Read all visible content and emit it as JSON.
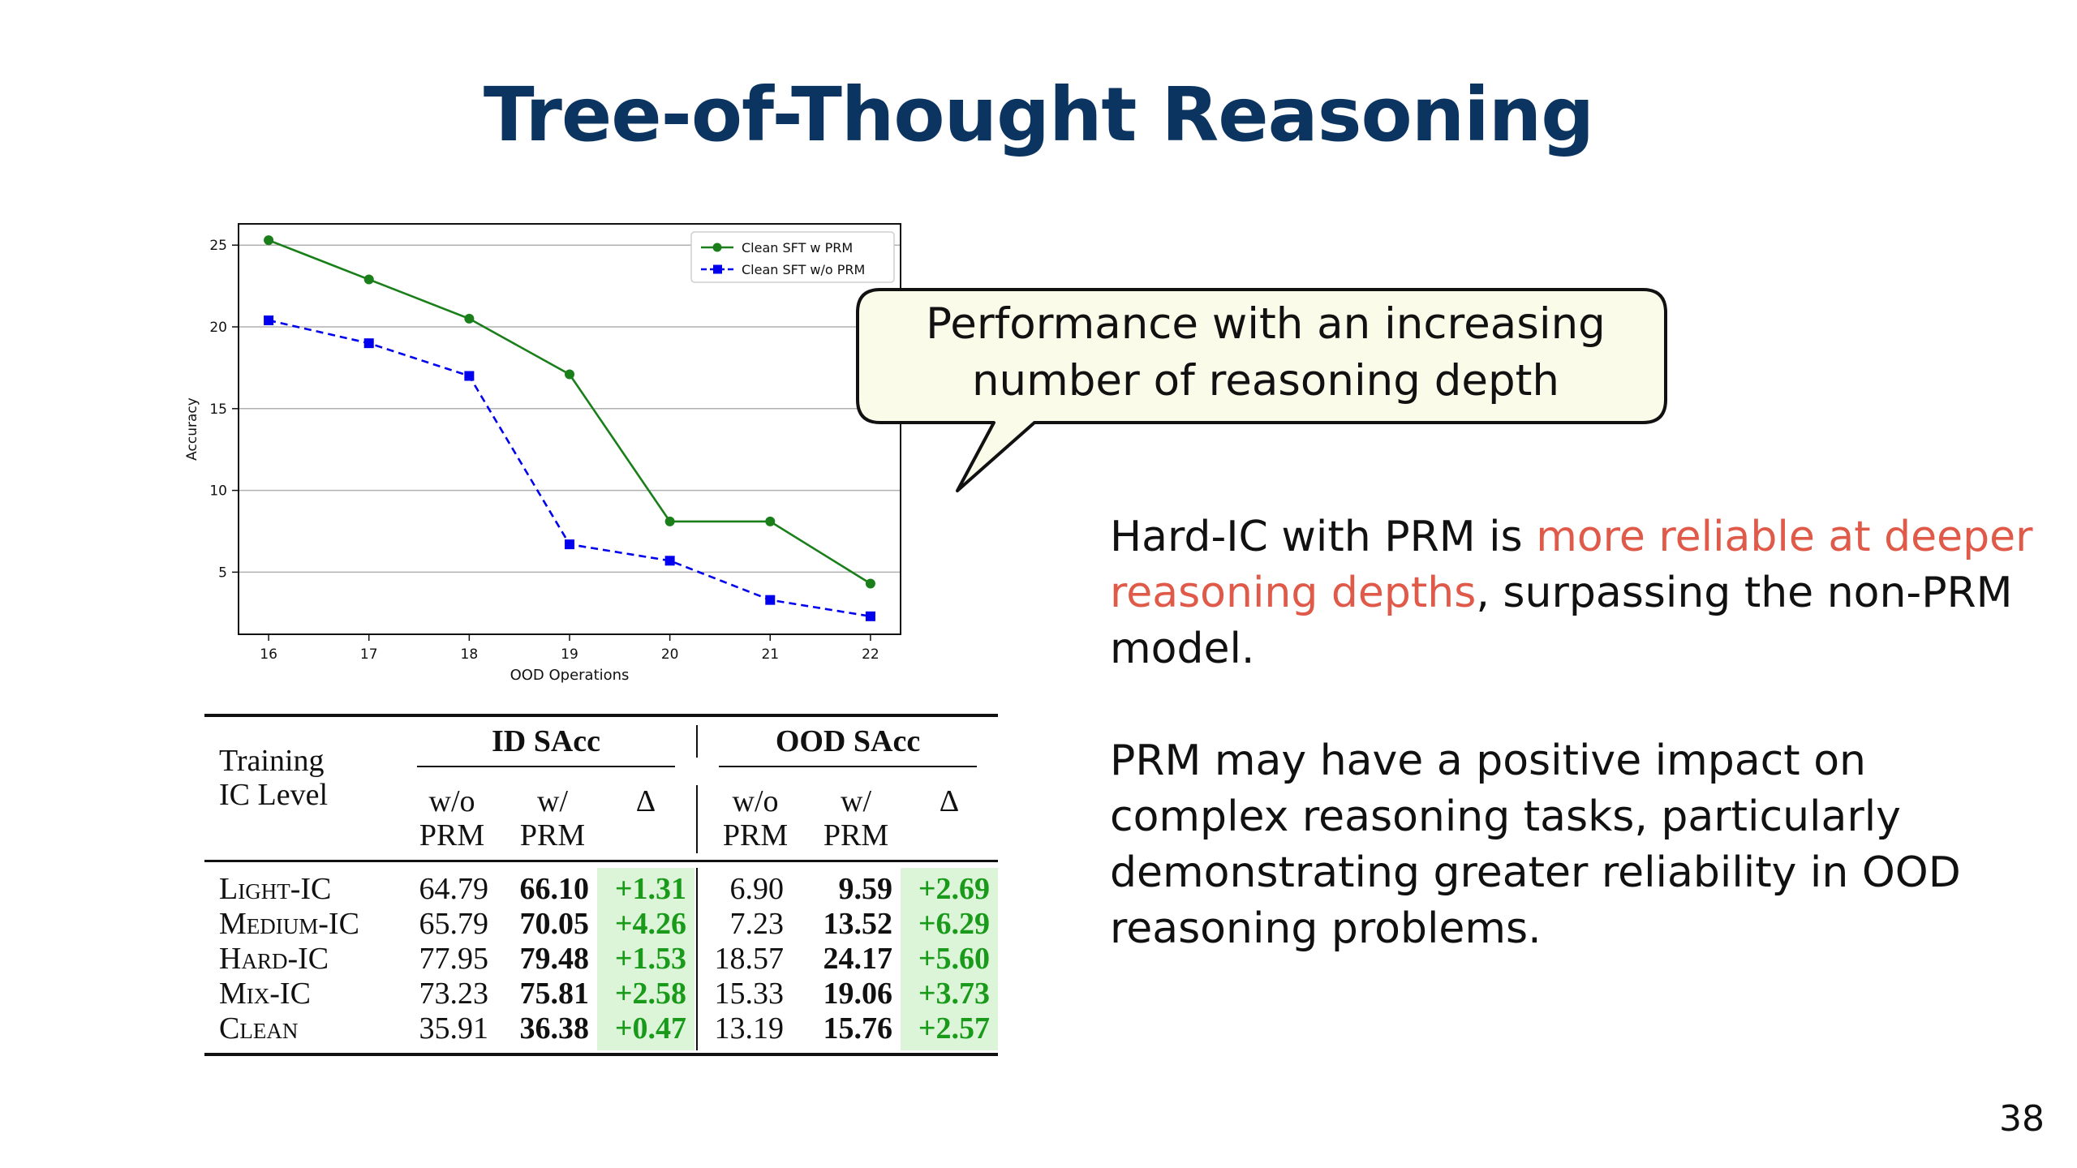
{
  "slide": {
    "title": "Tree-of-Thought Reasoning",
    "page_number": "38"
  },
  "callout": {
    "line1": "Performance with an increasing",
    "line2": "number of reasoning depth"
  },
  "body": {
    "p1_before": "Hard-IC with PRM is ",
    "p1_highlight": "more reliable at deeper reasoning depths",
    "p1_after": ", surpassing the non-PRM model.",
    "p2": "PRM may have a positive impact on complex reasoning tasks, particularly demonstrating greater reliability in OOD reasoning problems."
  },
  "chart_data": {
    "type": "line",
    "x": [
      16,
      17,
      18,
      19,
      20,
      21,
      22
    ],
    "xlabel": "OOD Operations",
    "ylabel": "Accuracy",
    "ylim": [
      1.2,
      26.3
    ],
    "yticks": [
      5,
      10,
      15,
      20,
      25
    ],
    "grid": "horizontal",
    "legend_position": "top-right",
    "series": [
      {
        "name": "Clean SFT w PRM",
        "values": [
          25.3,
          22.9,
          20.5,
          17.1,
          8.1,
          8.1,
          4.3
        ],
        "color": "#1a7f1a",
        "marker": "circle",
        "line": "solid"
      },
      {
        "name": "Clean SFT w/o PRM",
        "values": [
          20.4,
          19.0,
          17.0,
          6.7,
          5.7,
          3.3,
          2.3
        ],
        "color": "#0000ee",
        "marker": "square",
        "line": "dashed"
      }
    ]
  },
  "table": {
    "row_header_line1": "Training",
    "row_header_line2": "IC Level",
    "group1": "ID SAcc",
    "group2": "OOD SAcc",
    "sub_wo_line1": "w/o",
    "sub_wo_line2": "PRM",
    "sub_w_line1": "w/",
    "sub_w_line2": "PRM",
    "delta": "Δ",
    "rows": [
      {
        "label": "Light-IC",
        "id_wo": "64.79",
        "id_w": "66.10",
        "id_d": "+1.31",
        "ood_wo": "6.90",
        "ood_w": "9.59",
        "ood_d": "+2.69"
      },
      {
        "label": "Medium-IC",
        "id_wo": "65.79",
        "id_w": "70.05",
        "id_d": "+4.26",
        "ood_wo": "7.23",
        "ood_w": "13.52",
        "ood_d": "+6.29"
      },
      {
        "label": "Hard-IC",
        "id_wo": "77.95",
        "id_w": "79.48",
        "id_d": "+1.53",
        "ood_wo": "18.57",
        "ood_w": "24.17",
        "ood_d": "+5.60"
      },
      {
        "label": "Mix-IC",
        "id_wo": "73.23",
        "id_w": "75.81",
        "id_d": "+2.58",
        "ood_wo": "15.33",
        "ood_w": "19.06",
        "ood_d": "+3.73"
      },
      {
        "label": "Clean",
        "id_wo": "35.91",
        "id_w": "36.38",
        "id_d": "+0.47",
        "ood_wo": "13.19",
        "ood_w": "15.76",
        "ood_d": "+2.57"
      }
    ]
  }
}
